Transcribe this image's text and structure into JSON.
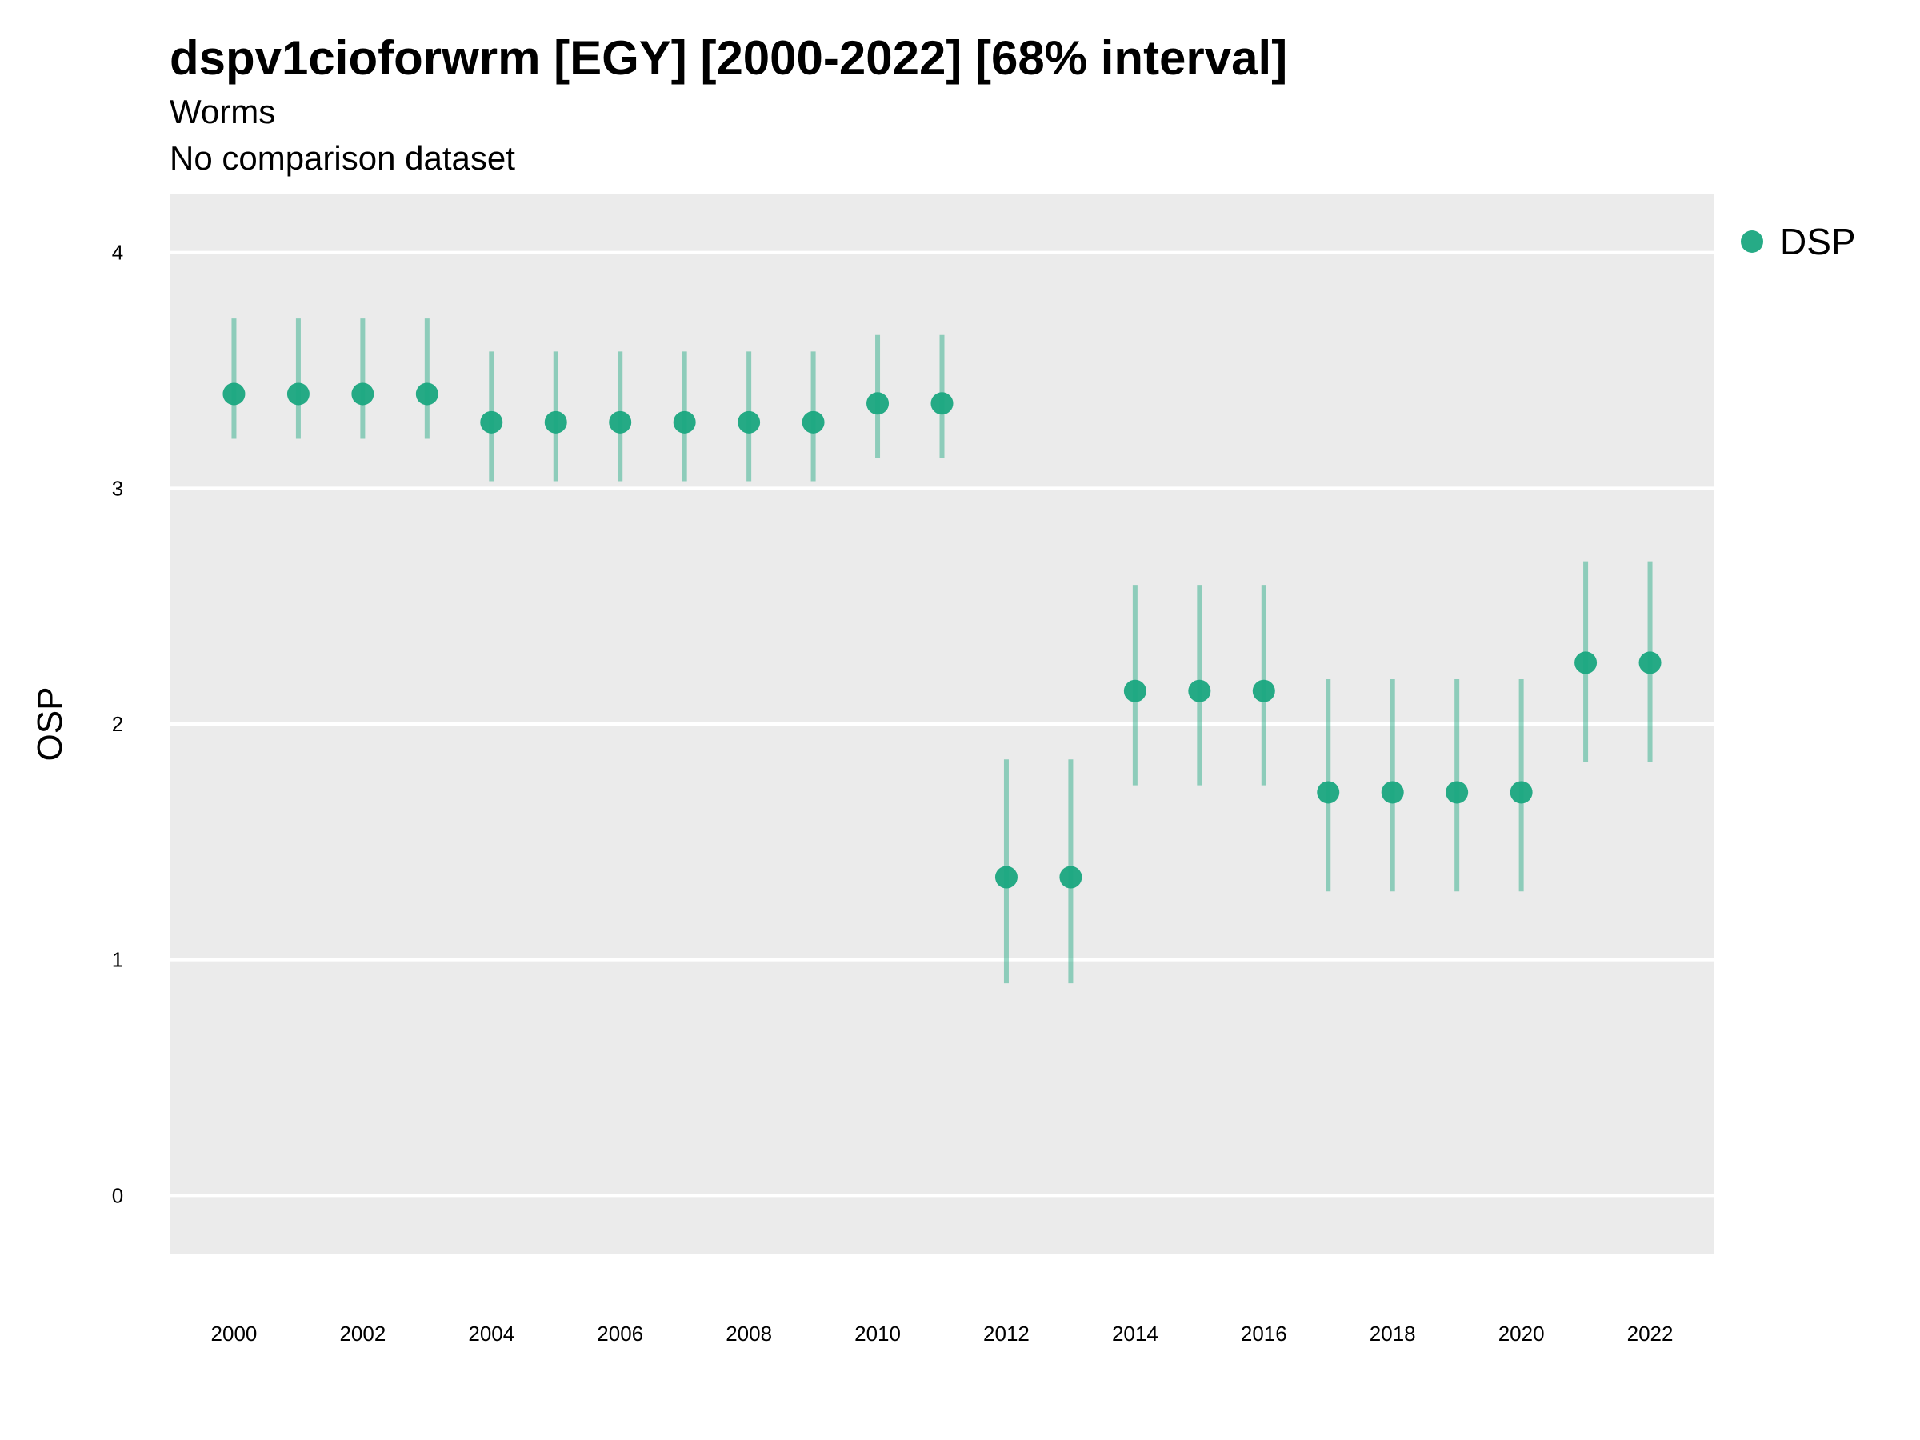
{
  "chart_data": {
    "type": "scatter",
    "title": "dspv1cioforwrm [EGY] [2000-2022] [68% interval]",
    "subtitle": "Worms",
    "caption": "No comparison dataset",
    "ylabel": "OSP",
    "xlabel": "",
    "ylim": [
      -0.25,
      4.25
    ],
    "xlim": [
      1999.0,
      2023.0
    ],
    "yticks": [
      0,
      1,
      2,
      3,
      4
    ],
    "xticks": [
      2000,
      2002,
      2004,
      2006,
      2008,
      2010,
      2012,
      2014,
      2016,
      2018,
      2020,
      2022
    ],
    "grid": "horizontal",
    "legend_position": "top-right",
    "series": [
      {
        "name": "DSP",
        "color": "#1aa67f",
        "x": [
          2000,
          2001,
          2002,
          2003,
          2004,
          2005,
          2006,
          2007,
          2008,
          2009,
          2010,
          2011,
          2012,
          2013,
          2014,
          2015,
          2016,
          2017,
          2018,
          2019,
          2020,
          2021,
          2022
        ],
        "y": [
          3.4,
          3.4,
          3.4,
          3.4,
          3.28,
          3.28,
          3.28,
          3.28,
          3.28,
          3.28,
          3.36,
          3.36,
          1.35,
          1.35,
          2.14,
          2.14,
          2.14,
          1.71,
          1.71,
          1.71,
          1.71,
          2.26,
          2.26
        ],
        "lower": [
          3.21,
          3.21,
          3.21,
          3.21,
          3.03,
          3.03,
          3.03,
          3.03,
          3.03,
          3.03,
          3.13,
          3.13,
          0.9,
          0.9,
          1.74,
          1.74,
          1.74,
          1.29,
          1.29,
          1.29,
          1.29,
          1.84,
          1.84
        ],
        "upper": [
          3.72,
          3.72,
          3.72,
          3.72,
          3.58,
          3.58,
          3.58,
          3.58,
          3.58,
          3.58,
          3.65,
          3.65,
          1.85,
          1.85,
          2.59,
          2.59,
          2.59,
          2.19,
          2.19,
          2.19,
          2.19,
          2.69,
          2.69
        ]
      }
    ]
  }
}
